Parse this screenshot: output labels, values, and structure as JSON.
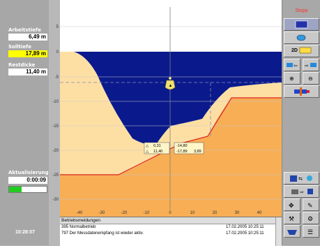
{
  "left_panel": {
    "arbeitstiefe_label": "Arbeitstiefe",
    "arbeitstiefe_value": "6,49 m",
    "solltiefe_label": "Solltiefe",
    "solltiefe_value": "17,89 m",
    "restdicke_label": "Restdicke",
    "restdicke_value": "11,40 m",
    "aktualisierung_label": "Aktualisierung",
    "aktualisierung_value": "0:00:09",
    "status_fill_fraction": 0.33,
    "clock": "10:28:07"
  },
  "profile_chart": {
    "x_ticks": [
      "-40",
      "-30",
      "-20",
      "-10",
      "0",
      "10",
      "20",
      "30",
      "40"
    ],
    "y_ticks": [
      "5",
      "0",
      "-5",
      "-10",
      "-15",
      "-20",
      "-25",
      "-30"
    ],
    "readout": {
      "r1a": "0,31",
      "r1b": "-14,80",
      "r2a": "11,40",
      "r2b": "-17,89",
      "r2c": "3,89"
    }
  },
  "log": {
    "header": "Betriebsmeldungen",
    "rows": [
      {
        "msg": "395 Normalbetrieb",
        "ts": "17.02.2005 10:25:11"
      },
      {
        "msg": "797 Der Messdatenempfang ist wieder aktiv.",
        "ts": "17.02.2005 10:25:11"
      }
    ]
  },
  "right_toolbar": {
    "stop_label": "Stopp",
    "mode_2d": "2D",
    "colors": {
      "accent_blue": "#0a1a8c",
      "sand": "#f7ae55"
    }
  }
}
